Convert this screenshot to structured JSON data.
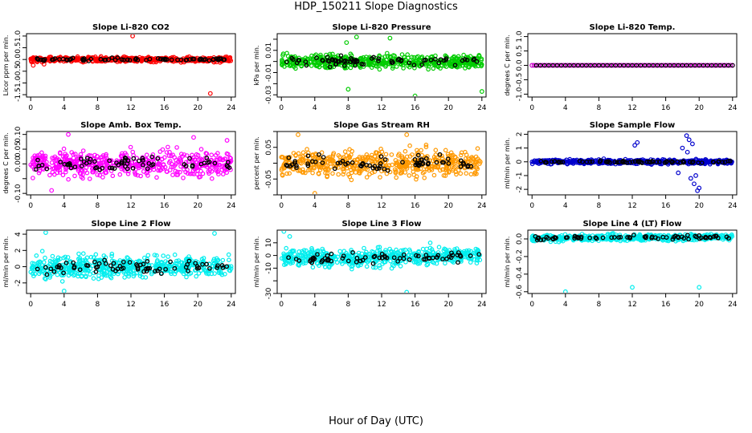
{
  "title": "HDP_150211  Slope Diagnostics",
  "xlabel": "Hour of Day (UTC)",
  "colors": {
    "axis": "#000000",
    "overlay": "#000000"
  },
  "chart_data": [
    {
      "type": "scatter",
      "title": "Slope Li-820 CO2",
      "ylabel": "Licor ppm per min.",
      "color": "#ff0000",
      "ylim": [
        -1.6,
        1.1
      ],
      "yticks": [
        -1.5,
        -1.0,
        -0.5,
        0.0,
        0.5,
        1.0
      ],
      "ytick_labels": [
        "-1.5",
        "-1.0",
        "-0.5",
        "0.0",
        "0.5",
        "1.0"
      ],
      "spread": 0.1,
      "trend": [
        0,
        0
      ],
      "outliers": [
        [
          12.2,
          1.0
        ],
        [
          21.5,
          -1.45
        ],
        [
          0.3,
          -0.25
        ],
        [
          1.6,
          -0.2
        ]
      ],
      "xlim": [
        -0.5,
        24.5
      ],
      "xticks": [
        0,
        4,
        8,
        12,
        16,
        20,
        24
      ]
    },
    {
      "type": "scatter",
      "title": "Slope Li-820 Pressure",
      "ylabel": "kPa per min.",
      "color": "#00cc00",
      "ylim": [
        -0.032,
        0.025
      ],
      "yticks": [
        -0.03,
        -0.02,
        -0.01,
        0.0,
        0.01,
        0.02
      ],
      "ytick_labels": [
        "-0.03",
        "-0.01",
        "0.01"
      ],
      "ytick_labeled": [
        -0.03,
        -0.01,
        0.01
      ],
      "spread": 0.006,
      "trend": [
        0,
        0
      ],
      "outliers": [
        [
          16,
          -0.031
        ],
        [
          24,
          -0.027
        ],
        [
          8,
          -0.025
        ],
        [
          7.8,
          0.017
        ],
        [
          9,
          0.022
        ],
        [
          13,
          0.021
        ]
      ],
      "xlim": [
        -0.5,
        24.5
      ],
      "xticks": [
        0,
        4,
        8,
        12,
        16,
        20,
        24
      ]
    },
    {
      "type": "scatter",
      "title": "Slope Li-820 Temp.",
      "ylabel": "degrees C per min.",
      "color": "#cc00cc",
      "ylim": [
        -1.1,
        1.1
      ],
      "yticks": [
        -1.0,
        -0.5,
        0.0,
        0.5,
        1.0
      ],
      "ytick_labels": [
        "-1.0",
        "-0.5",
        "0.0",
        "0.5",
        "1.0"
      ],
      "spread": 0.0,
      "trend": [
        0,
        0
      ],
      "outliers": [],
      "flat": true,
      "xlim": [
        -0.5,
        24.5
      ],
      "xticks": [
        0,
        4,
        8,
        12,
        16,
        20,
        24
      ]
    },
    {
      "type": "scatter",
      "title": "Slope Amb. Box Temp.",
      "ylabel": "degrees C per min.",
      "color": "#ff00ff",
      "ylim": [
        -0.105,
        0.11
      ],
      "yticks": [
        -0.1,
        -0.05,
        0.0,
        0.05,
        0.1
      ],
      "ytick_labels": [
        "-0.10",
        "0.00",
        "0.05",
        "0.10"
      ],
      "ytick_labeled": [
        -0.1,
        0.0,
        0.05,
        0.1
      ],
      "spread": 0.04,
      "trend": [
        0,
        0
      ],
      "outliers": [
        [
          4.5,
          0.1
        ],
        [
          19.5,
          0.09
        ],
        [
          23.5,
          0.08
        ],
        [
          2.5,
          -0.09
        ]
      ],
      "xlim": [
        -0.5,
        24.5
      ],
      "xticks": [
        0,
        4,
        8,
        12,
        16,
        20,
        24
      ]
    },
    {
      "type": "scatter",
      "title": "Slope Gas Stream RH",
      "ylabel": "percent per min.",
      "color": "#ff9900",
      "ylim": [
        -0.1,
        0.1
      ],
      "yticks": [
        -0.1,
        -0.05,
        0.0,
        0.05,
        0.1
      ],
      "ytick_labels": [
        "-0.05",
        "0.05"
      ],
      "ytick_labeled": [
        -0.05,
        0.05
      ],
      "spread": 0.04,
      "trend": [
        0,
        0
      ],
      "outliers": [
        [
          4,
          -0.095
        ],
        [
          2,
          0.09
        ],
        [
          15,
          0.09
        ]
      ],
      "xlim": [
        -0.5,
        24.5
      ],
      "xticks": [
        0,
        4,
        8,
        12,
        16,
        20,
        24
      ]
    },
    {
      "type": "scatter",
      "title": "Slope Sample Flow",
      "ylabel": "ml/min per min.",
      "color": "#0000cc",
      "ylim": [
        -2.4,
        2.2
      ],
      "yticks": [
        -2,
        -1,
        0,
        1,
        2
      ],
      "ytick_labels": [
        "-2",
        "-1",
        "0",
        "1",
        "2"
      ],
      "spread": 0.15,
      "trend": [
        0,
        0
      ],
      "outliers": [
        [
          18.5,
          1.9
        ],
        [
          18.8,
          1.6
        ],
        [
          19.2,
          1.3
        ],
        [
          18,
          1.0
        ],
        [
          18.6,
          0.7
        ],
        [
          19,
          -1.2
        ],
        [
          19.4,
          -1.6
        ],
        [
          19.8,
          -2.1
        ],
        [
          20,
          -1.9
        ],
        [
          12.3,
          1.2
        ],
        [
          12.6,
          1.4
        ],
        [
          17.5,
          -0.8
        ],
        [
          19.6,
          -1.0
        ]
      ],
      "xlim": [
        -0.5,
        24.5
      ],
      "xticks": [
        0,
        4,
        8,
        12,
        16,
        20,
        24
      ]
    },
    {
      "type": "scatter",
      "title": "Slope Line 2 Flow",
      "ylabel": "ml/min per min.",
      "color": "#00eeee",
      "ylim": [
        -3.3,
        4.5
      ],
      "yticks": [
        -2,
        0,
        2,
        4
      ],
      "ytick_labels": [
        "-2",
        "0",
        "2",
        "4"
      ],
      "spread": 1.3,
      "trend": [
        0,
        0
      ],
      "outliers": [
        [
          1.8,
          4.2
        ],
        [
          4,
          -3.0
        ],
        [
          22,
          4.1
        ]
      ],
      "xlim": [
        -0.5,
        24.5
      ],
      "xticks": [
        0,
        4,
        8,
        12,
        16,
        20,
        24
      ]
    },
    {
      "type": "scatter",
      "title": "Slope Line 3 Flow",
      "ylabel": "ml/min per min.",
      "color": "#00eeee",
      "ylim": [
        -30,
        20
      ],
      "yticks": [
        -30,
        -20,
        -10,
        0,
        10
      ],
      "ytick_labels": [
        "-30",
        "-10",
        "0",
        "10"
      ],
      "ytick_labeled": [
        -30,
        -10,
        0,
        10
      ],
      "spread": 7,
      "trend": [
        -3,
        0
      ],
      "outliers": [
        [
          0.3,
          19
        ],
        [
          15,
          -29
        ],
        [
          1,
          15
        ]
      ],
      "xlim": [
        -0.5,
        24.5
      ],
      "xticks": [
        0,
        4,
        8,
        12,
        16,
        20,
        24
      ]
    },
    {
      "type": "scatter",
      "title": "Slope Line 4 (LT) Flow",
      "ylabel": "ml/min per min.",
      "color": "#00eeee",
      "ylim": [
        -0.62,
        0.1
      ],
      "yticks": [
        -0.6,
        -0.4,
        -0.2,
        0.0
      ],
      "ytick_labels": [
        "-0.6",
        "-0.4",
        "-0.2",
        "0.0"
      ],
      "spread": 0.035,
      "trend": [
        0.01,
        0.02
      ],
      "outliers": [
        [
          4,
          -0.6
        ],
        [
          12,
          -0.55
        ],
        [
          20,
          -0.55
        ]
      ],
      "xlim": [
        -0.5,
        24.5
      ],
      "xticks": [
        0,
        4,
        8,
        12,
        16,
        20,
        24
      ]
    }
  ]
}
